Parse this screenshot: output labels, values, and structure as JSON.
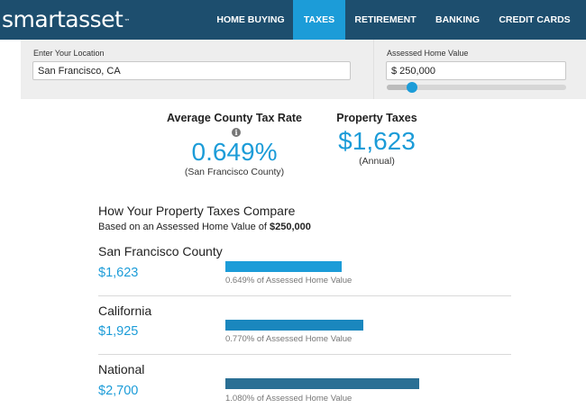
{
  "brand": {
    "logo_main": "smartasset",
    "logo_tm": "™"
  },
  "nav": [
    {
      "label": "HOME BUYING",
      "active": false
    },
    {
      "label": "TAXES",
      "active": true
    },
    {
      "label": "RETIREMENT",
      "active": false
    },
    {
      "label": "BANKING",
      "active": false
    },
    {
      "label": "CREDIT CARDS",
      "active": false
    }
  ],
  "inputs": {
    "location_label": "Enter Your Location",
    "location_value": "San Francisco, CA",
    "home_value_label": "Assessed Home Value",
    "home_value": "$ 250,000",
    "slider_fraction": 0.14
  },
  "summary": {
    "rate_title": "Average County Tax Rate",
    "rate_value": "0.649%",
    "rate_note": "(San Francisco County)",
    "info_icon": "i",
    "tax_title": "Property Taxes",
    "tax_value": "$1,623",
    "tax_note": "(Annual)"
  },
  "compare": {
    "title": "How Your Property Taxes Compare",
    "subtitle_prefix": "Based on an Assessed Home Value of ",
    "subtitle_value": "$250,000",
    "rows": [
      {
        "name": "San Francisco County",
        "amount": "$1,623",
        "caption": "0.649% of Assessed Home Value",
        "rate": 0.649,
        "color": "#1c9cd8"
      },
      {
        "name": "California",
        "amount": "$1,925",
        "caption": "0.770% of Assessed Home Value",
        "rate": 0.77,
        "color": "#1a87be"
      },
      {
        "name": "National",
        "amount": "$2,700",
        "caption": "1.080% of Assessed Home Value",
        "rate": 1.08,
        "color": "#2a6f94"
      }
    ]
  },
  "colors": {
    "topbar": "#1d4e6e",
    "accent": "#1c9cd8"
  }
}
